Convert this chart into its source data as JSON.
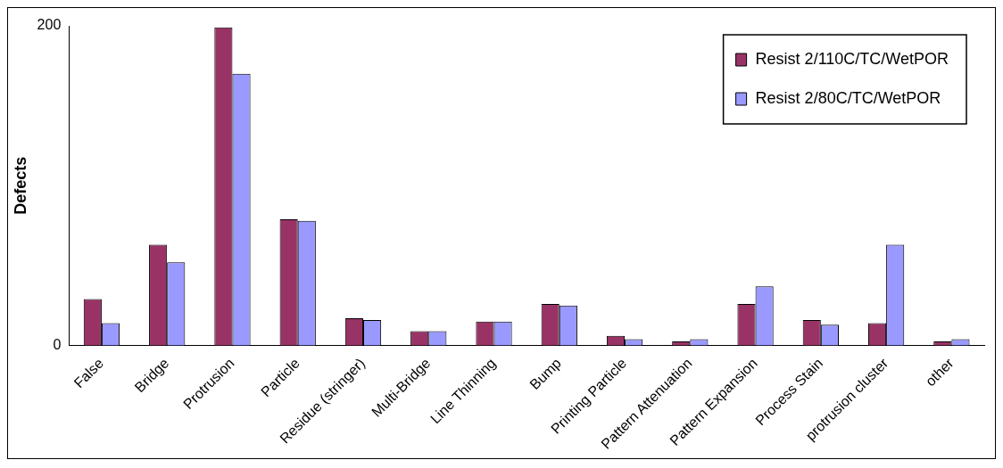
{
  "chart_data": {
    "type": "bar",
    "ylabel": "Defects",
    "categories": [
      "False",
      "Bridge",
      "Protrusion",
      "Particle",
      "Residue (stringer)",
      "Multi-Bridge",
      "Line Thinning",
      "Bump",
      "Printing Particle",
      "Pattern Attenuation",
      "Pattern Expansion",
      "Process Stain",
      "protrusion cluster",
      "other"
    ],
    "series": [
      {
        "name": "Resist 2/110C/TC/WetPOR",
        "color": "#993366",
        "values": [
          29,
          63,
          199,
          79,
          17,
          9,
          15,
          26,
          6,
          2.5,
          26,
          16,
          14,
          2.5
        ]
      },
      {
        "name": "Resist 2/80C/TC/WetPOR",
        "color": "#9999ff",
        "values": [
          14,
          52,
          170,
          78,
          16,
          9,
          15,
          25,
          4,
          4,
          37,
          13,
          63,
          4
        ]
      }
    ],
    "ylim": [
      0,
      200
    ],
    "yticks": [
      0,
      200
    ],
    "grid": false,
    "legend": "top right"
  }
}
